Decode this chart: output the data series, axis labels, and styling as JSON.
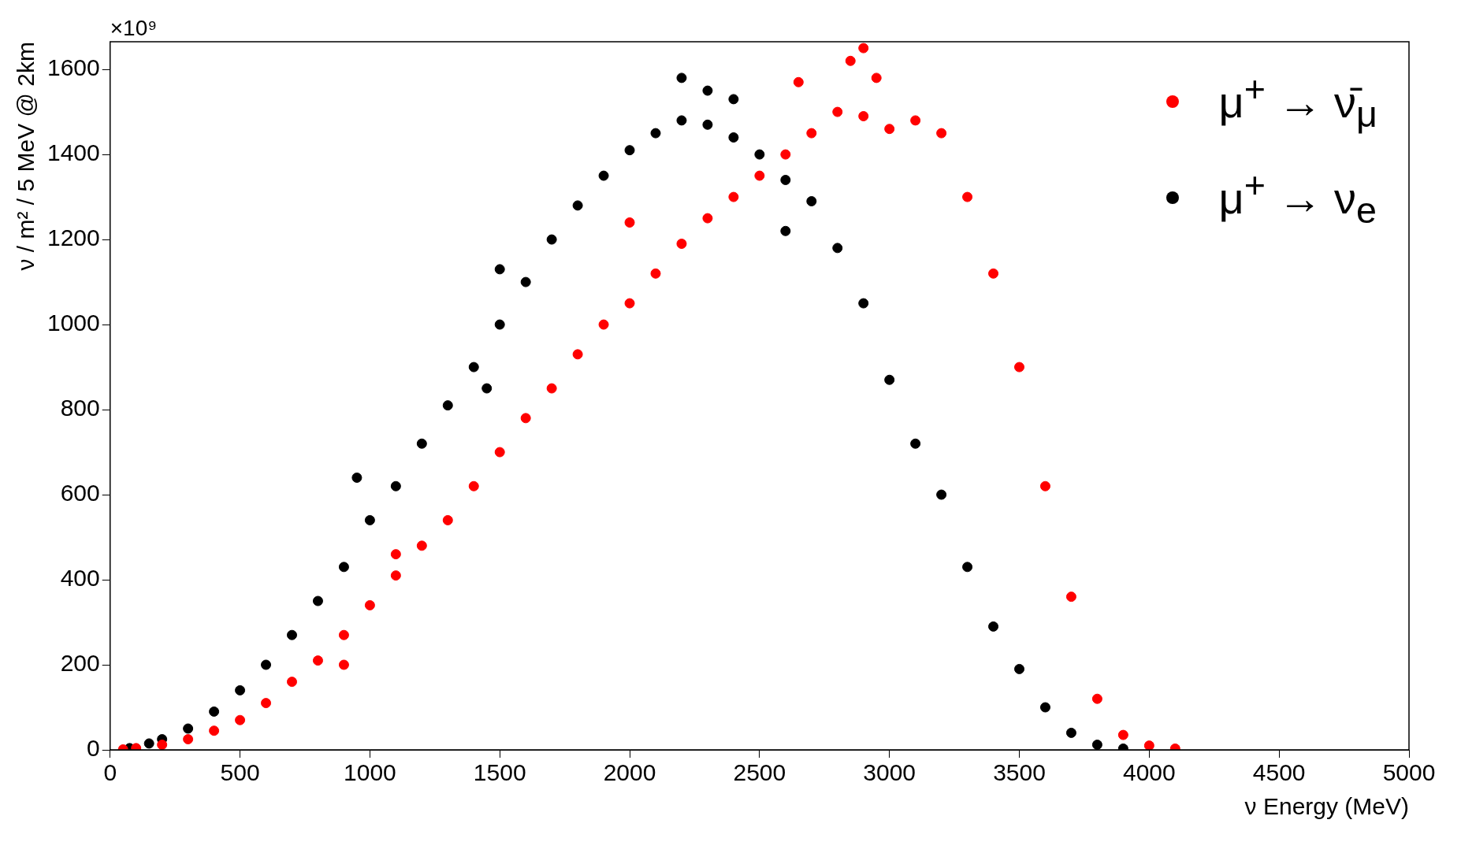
{
  "chart_data": {
    "type": "scatter",
    "xlabel": "ν Energy (MeV)",
    "ylabel": "ν / m² / 5 MeV @ 2km",
    "annotations": [
      "×10⁹"
    ],
    "xlim": [
      0,
      5000
    ],
    "xticks": [
      0,
      500,
      1000,
      1500,
      2000,
      2500,
      3000,
      3500,
      4000,
      4500,
      5000
    ],
    "ylim": [
      0,
      1665
    ],
    "yticks": [
      0,
      200,
      400,
      600,
      800,
      1000,
      1200,
      1400,
      1600
    ],
    "grid": false,
    "legend": "top right",
    "marker": "circle",
    "series": [
      {
        "name": "μ$^{+}$ → ν̄$_{μ}$",
        "color": "#ff0000",
        "x": [
          50,
          100,
          200,
          300,
          400,
          500,
          600,
          700,
          800,
          900,
          1000,
          1100,
          1200,
          1300,
          1400,
          1500,
          1600,
          1700,
          1800,
          1900,
          2000,
          2100,
          2200,
          2300,
          2400,
          2500,
          2600,
          2700,
          2800,
          2900,
          3000,
          3100,
          3200,
          3300,
          3400,
          3500,
          3600,
          3700,
          3800,
          3900,
          4000,
          4100,
          2900,
          2850,
          2950,
          1100,
          900,
          2000,
          2650
        ],
        "values": [
          1,
          4,
          12,
          25,
          45,
          70,
          110,
          160,
          210,
          270,
          340,
          410,
          480,
          540,
          620,
          700,
          780,
          850,
          930,
          1000,
          1050,
          1120,
          1190,
          1250,
          1300,
          1350,
          1400,
          1450,
          1500,
          1490,
          1460,
          1480,
          1450,
          1300,
          1120,
          900,
          620,
          360,
          120,
          35,
          10,
          3,
          1650,
          1620,
          1580,
          460,
          200,
          1240,
          1570
        ]
      },
      {
        "name": "μ$^{+}$ → ν$_{e}$",
        "color": "#000000",
        "x": [
          75,
          150,
          200,
          300,
          400,
          500,
          600,
          700,
          800,
          900,
          1000,
          1100,
          1200,
          1300,
          1400,
          1500,
          1600,
          1700,
          1800,
          1900,
          2000,
          2100,
          2200,
          2300,
          2400,
          2500,
          2600,
          2700,
          2800,
          2900,
          3000,
          3100,
          3200,
          3300,
          3400,
          3500,
          3600,
          3700,
          3800,
          3900,
          2200,
          2300,
          1500,
          1450,
          950,
          2400,
          2600
        ],
        "values": [
          4,
          15,
          25,
          50,
          90,
          140,
          200,
          270,
          350,
          430,
          540,
          620,
          720,
          810,
          900,
          1000,
          1100,
          1200,
          1280,
          1350,
          1410,
          1450,
          1480,
          1470,
          1440,
          1400,
          1340,
          1290,
          1180,
          1050,
          870,
          720,
          600,
          430,
          290,
          190,
          100,
          40,
          12,
          3,
          1580,
          1550,
          1130,
          850,
          640,
          1530,
          1220
        ]
      }
    ]
  }
}
